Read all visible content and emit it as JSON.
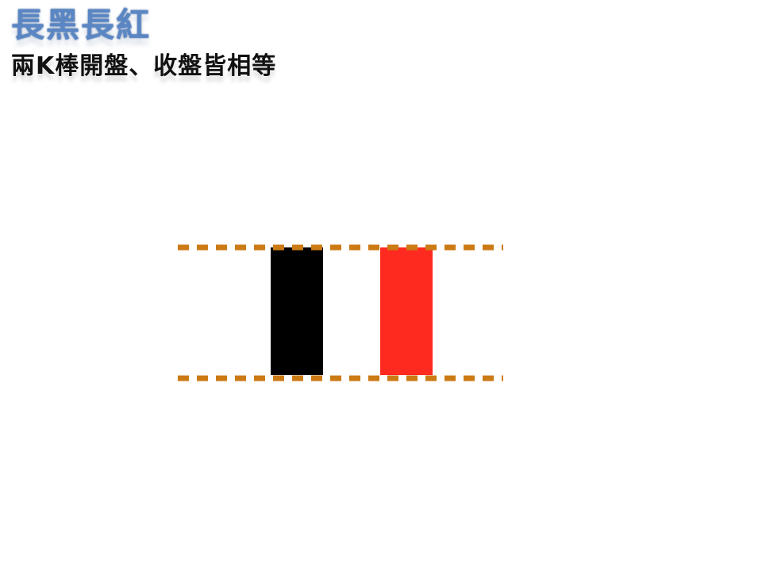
{
  "slide": {
    "title": "長黑長紅",
    "subtitle": "兩K棒開盤、收盤皆相等"
  },
  "diagram": {
    "candles": [
      {
        "name": "long-black",
        "color": "#000000"
      },
      {
        "name": "long-red",
        "color": "#ff2a1f"
      }
    ],
    "guide_line_color": "#cc7a14",
    "guide_lines": [
      "open-close-level-top",
      "open-close-level-bottom"
    ]
  }
}
